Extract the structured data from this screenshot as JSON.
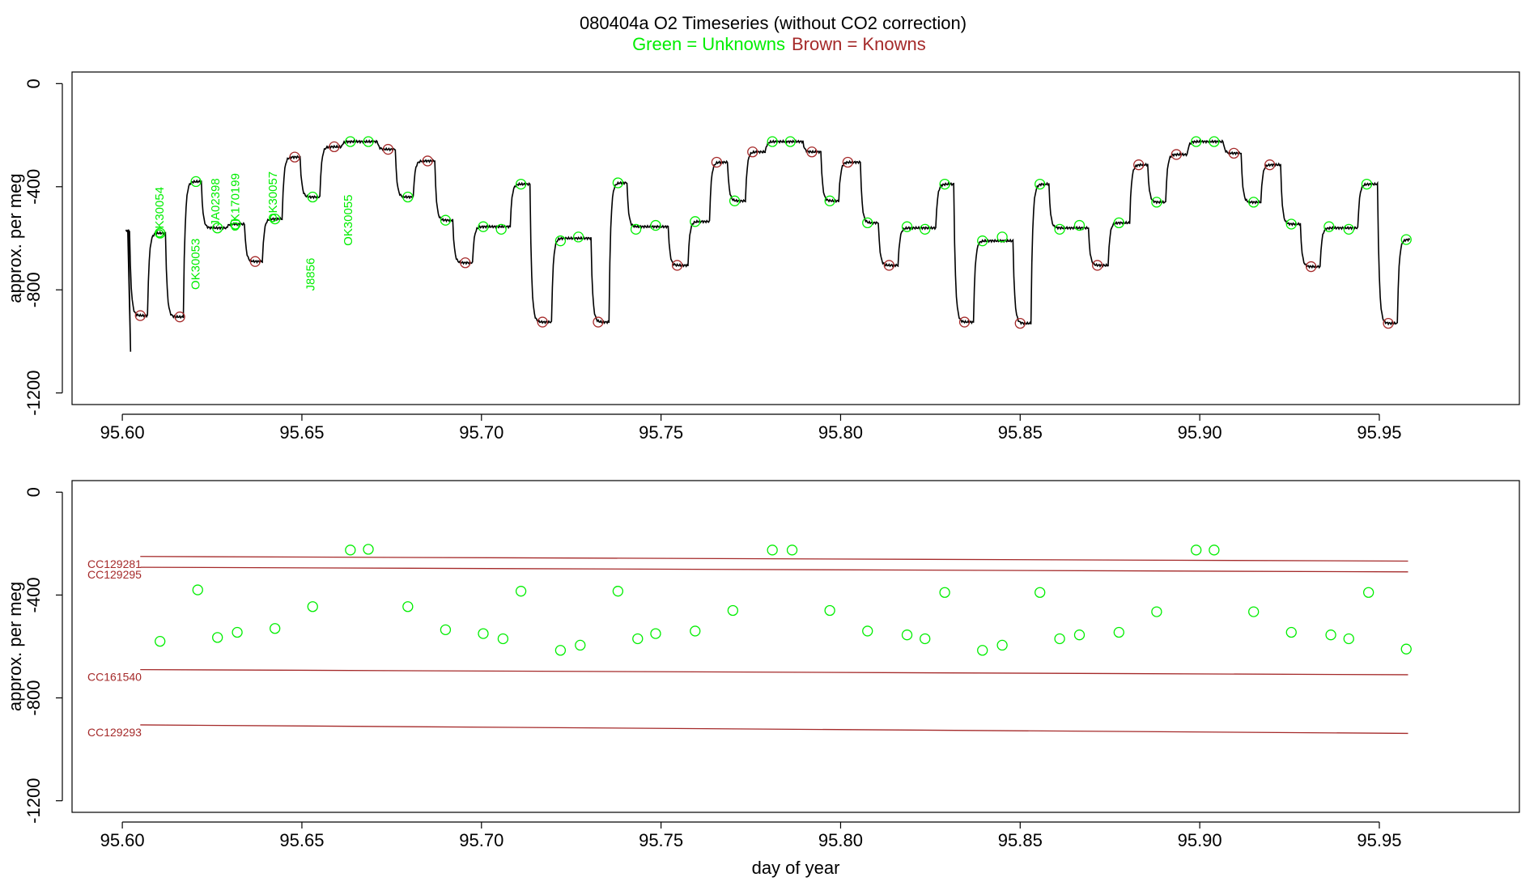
{
  "title": {
    "main": "080404a   O2 Timeseries (without CO2 correction)",
    "legend_unknowns": "Green = Unknowns",
    "legend_knowns": "Brown = Knowns"
  },
  "colors": {
    "unknown": "#00ee00",
    "known": "#a52a2a",
    "line": "#000000",
    "axis": "#000000"
  },
  "chart_data": [
    {
      "type": "line",
      "name": "top-panel",
      "ylabel": "approx. per meg",
      "xlabel": "",
      "xlim": [
        95.586,
        95.989
      ],
      "ylim": [
        -1245,
        45
      ],
      "xticks": [
        "95.60",
        "95.65",
        "95.70",
        "95.75",
        "95.80",
        "95.85",
        "95.90",
        "95.95"
      ],
      "xtick_values": [
        95.6,
        95.65,
        95.7,
        95.75,
        95.8,
        95.85,
        95.9,
        95.95
      ],
      "yticks": [
        "0",
        "-400",
        "-800",
        "-1200"
      ],
      "ytick_values": [
        0,
        -400,
        -800,
        -1200
      ],
      "segments": [
        [
          95.601,
          95.602,
          -570
        ],
        [
          95.602,
          95.607,
          -900
        ],
        [
          95.607,
          95.612,
          -580
        ],
        [
          95.612,
          95.617,
          -905
        ],
        [
          95.617,
          95.622,
          -380
        ],
        [
          95.622,
          95.629,
          -560
        ],
        [
          95.629,
          95.634,
          -545
        ],
        [
          95.634,
          95.639,
          -690
        ],
        [
          95.639,
          95.6445,
          -525
        ],
        [
          95.6445,
          95.6495,
          -285
        ],
        [
          95.6495,
          95.655,
          -440
        ],
        [
          95.655,
          95.661,
          -245
        ],
        [
          95.661,
          95.671,
          -225
        ],
        [
          95.671,
          95.676,
          -255
        ],
        [
          95.676,
          95.681,
          -440
        ],
        [
          95.681,
          95.687,
          -300
        ],
        [
          95.687,
          95.692,
          -530
        ],
        [
          95.692,
          95.6975,
          -695
        ],
        [
          95.6975,
          95.708,
          -555
        ],
        [
          95.708,
          95.7135,
          -390
        ],
        [
          95.7135,
          95.7195,
          -925
        ],
        [
          95.7195,
          95.7305,
          -600
        ],
        [
          95.7305,
          95.7355,
          -925
        ],
        [
          95.7355,
          95.7405,
          -385
        ],
        [
          95.7405,
          95.752,
          -555
        ],
        [
          95.752,
          95.7575,
          -705
        ],
        [
          95.7575,
          95.7635,
          -535
        ],
        [
          95.7635,
          95.7685,
          -305
        ],
        [
          95.7685,
          95.7735,
          -455
        ],
        [
          95.7735,
          95.779,
          -265
        ],
        [
          95.779,
          95.7895,
          -225
        ],
        [
          95.7895,
          95.7945,
          -265
        ],
        [
          95.7945,
          95.7995,
          -455
        ],
        [
          95.7995,
          95.8055,
          -305
        ],
        [
          95.8055,
          95.8105,
          -540
        ],
        [
          95.8105,
          95.816,
          -705
        ],
        [
          95.816,
          95.8265,
          -560
        ],
        [
          95.8265,
          95.8315,
          -390
        ],
        [
          95.8315,
          95.837,
          -925
        ],
        [
          95.837,
          95.848,
          -610
        ],
        [
          95.848,
          95.853,
          -930
        ],
        [
          95.853,
          95.858,
          -390
        ],
        [
          95.858,
          95.869,
          -560
        ],
        [
          95.869,
          95.8745,
          -705
        ],
        [
          95.8745,
          95.8805,
          -540
        ],
        [
          95.8805,
          95.8855,
          -315
        ],
        [
          95.8855,
          95.8905,
          -460
        ],
        [
          95.8905,
          95.8965,
          -275
        ],
        [
          95.8965,
          95.9065,
          -225
        ],
        [
          95.9065,
          95.9115,
          -270
        ],
        [
          95.9115,
          95.917,
          -460
        ],
        [
          95.917,
          95.9225,
          -315
        ],
        [
          95.9225,
          95.928,
          -545
        ],
        [
          95.928,
          95.9335,
          -710
        ],
        [
          95.9335,
          95.944,
          -560
        ],
        [
          95.944,
          95.9495,
          -390
        ],
        [
          95.9495,
          95.955,
          -930
        ],
        [
          95.955,
          95.9585,
          -605
        ]
      ],
      "known_points": [
        {
          "x": 95.605,
          "y": -900
        },
        {
          "x": 95.616,
          "y": -905
        },
        {
          "x": 95.637,
          "y": -690
        },
        {
          "x": 95.648,
          "y": -285
        },
        {
          "x": 95.659,
          "y": -245
        },
        {
          "x": 95.674,
          "y": -255
        },
        {
          "x": 95.685,
          "y": -300
        },
        {
          "x": 95.6955,
          "y": -695
        },
        {
          "x": 95.717,
          "y": -925
        },
        {
          "x": 95.7325,
          "y": -925
        },
        {
          "x": 95.7545,
          "y": -705
        },
        {
          "x": 95.7655,
          "y": -305
        },
        {
          "x": 95.7755,
          "y": -265
        },
        {
          "x": 95.792,
          "y": -265
        },
        {
          "x": 95.802,
          "y": -305
        },
        {
          "x": 95.8135,
          "y": -705
        },
        {
          "x": 95.8345,
          "y": -925
        },
        {
          "x": 95.85,
          "y": -930
        },
        {
          "x": 95.8715,
          "y": -705
        },
        {
          "x": 95.883,
          "y": -315
        },
        {
          "x": 95.8935,
          "y": -275
        },
        {
          "x": 95.9095,
          "y": -270
        },
        {
          "x": 95.9195,
          "y": -315
        },
        {
          "x": 95.931,
          "y": -710
        },
        {
          "x": 95.9525,
          "y": -930
        }
      ],
      "unknown_points": [
        {
          "x": 95.6105,
          "y": -580
        },
        {
          "x": 95.6205,
          "y": -380
        },
        {
          "x": 95.6265,
          "y": -560
        },
        {
          "x": 95.6315,
          "y": -545
        },
        {
          "x": 95.6425,
          "y": -525
        },
        {
          "x": 95.653,
          "y": -440
        },
        {
          "x": 95.6635,
          "y": -225
        },
        {
          "x": 95.6685,
          "y": -225
        },
        {
          "x": 95.6795,
          "y": -440
        },
        {
          "x": 95.69,
          "y": -530
        },
        {
          "x": 95.7005,
          "y": -555
        },
        {
          "x": 95.7055,
          "y": -565
        },
        {
          "x": 95.711,
          "y": -390
        },
        {
          "x": 95.722,
          "y": -610
        },
        {
          "x": 95.727,
          "y": -595
        },
        {
          "x": 95.738,
          "y": -385
        },
        {
          "x": 95.743,
          "y": -565
        },
        {
          "x": 95.7485,
          "y": -550
        },
        {
          "x": 95.7595,
          "y": -535
        },
        {
          "x": 95.7705,
          "y": -455
        },
        {
          "x": 95.781,
          "y": -225
        },
        {
          "x": 95.786,
          "y": -225
        },
        {
          "x": 95.797,
          "y": -455
        },
        {
          "x": 95.8075,
          "y": -540
        },
        {
          "x": 95.8185,
          "y": -555
        },
        {
          "x": 95.8235,
          "y": -565
        },
        {
          "x": 95.829,
          "y": -390
        },
        {
          "x": 95.8395,
          "y": -610
        },
        {
          "x": 95.845,
          "y": -595
        },
        {
          "x": 95.8555,
          "y": -390
        },
        {
          "x": 95.861,
          "y": -565
        },
        {
          "x": 95.8665,
          "y": -550
        },
        {
          "x": 95.8775,
          "y": -540
        },
        {
          "x": 95.888,
          "y": -460
        },
        {
          "x": 95.899,
          "y": -225
        },
        {
          "x": 95.904,
          "y": -225
        },
        {
          "x": 95.915,
          "y": -460
        },
        {
          "x": 95.9255,
          "y": -545
        },
        {
          "x": 95.936,
          "y": -555
        },
        {
          "x": 95.9415,
          "y": -565
        },
        {
          "x": 95.9465,
          "y": -390
        },
        {
          "x": 95.9575,
          "y": -605
        }
      ],
      "annotations": [
        {
          "text": "OK30054",
          "x": 95.6115,
          "y": -500
        },
        {
          "text": "OK30053",
          "x": 95.6215,
          "y": -700
        },
        {
          "text": "JA02398",
          "x": 95.627,
          "y": -460
        },
        {
          "text": "OK170199",
          "x": 95.6325,
          "y": -460
        },
        {
          "text": "OK30057",
          "x": 95.643,
          "y": -440
        },
        {
          "text": "J8856",
          "x": 95.6535,
          "y": -740
        },
        {
          "text": "OK30055",
          "x": 95.664,
          "y": -530
        }
      ]
    },
    {
      "type": "scatter",
      "name": "bottom-panel",
      "ylabel": "approx. per meg",
      "xlabel": "day of year",
      "xlim": [
        95.586,
        95.989
      ],
      "ylim": [
        -1245,
        45
      ],
      "xticks": [
        "95.60",
        "95.65",
        "95.70",
        "95.75",
        "95.80",
        "95.85",
        "95.90",
        "95.95"
      ],
      "xtick_values": [
        95.6,
        95.65,
        95.7,
        95.75,
        95.8,
        95.85,
        95.9,
        95.95
      ],
      "yticks": [
        "0",
        "-400",
        "-800",
        "-1200"
      ],
      "ytick_values": [
        0,
        -400,
        -800,
        -1200
      ],
      "unknown_points": [
        {
          "x": 95.6105,
          "y": -580
        },
        {
          "x": 95.621,
          "y": -380
        },
        {
          "x": 95.6265,
          "y": -565
        },
        {
          "x": 95.632,
          "y": -545
        },
        {
          "x": 95.6425,
          "y": -530
        },
        {
          "x": 95.653,
          "y": -445
        },
        {
          "x": 95.6635,
          "y": -225
        },
        {
          "x": 95.6685,
          "y": -222
        },
        {
          "x": 95.6795,
          "y": -445
        },
        {
          "x": 95.69,
          "y": -535
        },
        {
          "x": 95.7005,
          "y": -550
        },
        {
          "x": 95.706,
          "y": -570
        },
        {
          "x": 95.711,
          "y": -385
        },
        {
          "x": 95.722,
          "y": -615
        },
        {
          "x": 95.7275,
          "y": -595
        },
        {
          "x": 95.738,
          "y": -385
        },
        {
          "x": 95.7435,
          "y": -570
        },
        {
          "x": 95.7485,
          "y": -550
        },
        {
          "x": 95.7595,
          "y": -540
        },
        {
          "x": 95.77,
          "y": -460
        },
        {
          "x": 95.781,
          "y": -225
        },
        {
          "x": 95.7865,
          "y": -225
        },
        {
          "x": 95.797,
          "y": -460
        },
        {
          "x": 95.8075,
          "y": -540
        },
        {
          "x": 95.8185,
          "y": -555
        },
        {
          "x": 95.8235,
          "y": -570
        },
        {
          "x": 95.829,
          "y": -390
        },
        {
          "x": 95.8395,
          "y": -615
        },
        {
          "x": 95.845,
          "y": -595
        },
        {
          "x": 95.8555,
          "y": -390
        },
        {
          "x": 95.861,
          "y": -570
        },
        {
          "x": 95.8665,
          "y": -555
        },
        {
          "x": 95.8775,
          "y": -545
        },
        {
          "x": 95.888,
          "y": -465
        },
        {
          "x": 95.899,
          "y": -225
        },
        {
          "x": 95.904,
          "y": -225
        },
        {
          "x": 95.915,
          "y": -465
        },
        {
          "x": 95.9255,
          "y": -545
        },
        {
          "x": 95.9365,
          "y": -555
        },
        {
          "x": 95.9415,
          "y": -570
        },
        {
          "x": 95.947,
          "y": -390
        },
        {
          "x": 95.9575,
          "y": -610
        }
      ],
      "reference_lines": [
        {
          "label": "CC129281",
          "x0": 95.605,
          "y0": -250,
          "x1": 95.958,
          "y1": -268
        },
        {
          "label": "CC129295",
          "x0": 95.605,
          "y0": -292,
          "x1": 95.958,
          "y1": -310
        },
        {
          "label": "CC161540",
          "x0": 95.605,
          "y0": -690,
          "x1": 95.958,
          "y1": -710
        },
        {
          "label": "CC129293",
          "x0": 95.605,
          "y0": -905,
          "x1": 95.958,
          "y1": -938
        }
      ]
    }
  ]
}
